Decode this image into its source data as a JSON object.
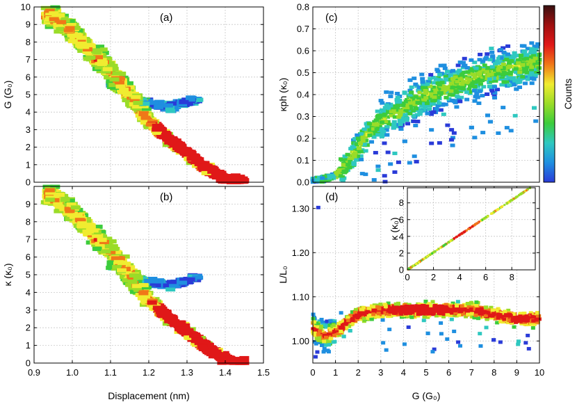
{
  "chart_data": [
    {
      "id": "a",
      "type": "heatmap",
      "panel_label": "(a)",
      "xlabel": "",
      "ylabel": "G (G₀)",
      "xlim": [
        0.9,
        1.5
      ],
      "ylim": [
        0,
        10
      ],
      "yticks": [
        0,
        1,
        2,
        3,
        4,
        5,
        6,
        7,
        8,
        9,
        10
      ],
      "trace": {
        "x": [
          0.95,
          1.0,
          1.05,
          1.1,
          1.15,
          1.2,
          1.25,
          1.3,
          1.35,
          1.4,
          1.44
        ],
        "y": [
          9.5,
          8.6,
          7.4,
          6.4,
          5.0,
          3.5,
          2.5,
          1.7,
          0.8,
          0.2,
          0.0
        ]
      },
      "branch": {
        "x": [
          1.1,
          1.18,
          1.26,
          1.33
        ],
        "y": [
          5.6,
          4.6,
          4.3,
          4.8
        ]
      }
    },
    {
      "id": "b",
      "type": "heatmap",
      "panel_label": "(b)",
      "xlabel": "Displacement (nm)",
      "ylabel": "κ (κ₀)",
      "xlim": [
        0.9,
        1.5
      ],
      "ylim": [
        0,
        10
      ],
      "xticks": [
        0.9,
        1.0,
        1.1,
        1.2,
        1.3,
        1.4,
        1.5
      ],
      "xtick_labels": [
        "0.9",
        "1.0",
        "1.1",
        "1.2",
        "1.3",
        "1.4",
        "1.5"
      ],
      "yticks": [
        0,
        1,
        2,
        3,
        4,
        5,
        6,
        7,
        8,
        9
      ],
      "trace": {
        "x": [
          0.95,
          1.0,
          1.05,
          1.1,
          1.15,
          1.2,
          1.25,
          1.3,
          1.35,
          1.4,
          1.44
        ],
        "y": [
          9.5,
          8.6,
          7.4,
          6.4,
          5.0,
          3.6,
          2.6,
          1.8,
          0.9,
          0.2,
          0.0
        ]
      },
      "branch": {
        "x": [
          1.1,
          1.18,
          1.26,
          1.33
        ],
        "y": [
          5.6,
          4.7,
          4.4,
          4.9
        ]
      }
    },
    {
      "id": "c",
      "type": "heatmap",
      "panel_label": "(c)",
      "xlabel": "",
      "ylabel": "κph (κ₀)",
      "xlim": [
        0,
        10
      ],
      "ylim": [
        0,
        0.8
      ],
      "yticks": [
        0,
        0.1,
        0.2,
        0.3,
        0.4,
        0.5,
        0.6,
        0.7,
        0.8
      ],
      "ytick_labels": [
        "0.0",
        "0.1",
        "0.2",
        "0.3",
        "0.4",
        "0.5",
        "0.6",
        "0.7",
        "0.8"
      ],
      "trend": {
        "x": [
          0,
          0.5,
          1,
          1.5,
          2,
          2.5,
          3,
          4,
          5,
          6,
          7,
          8,
          9,
          10
        ],
        "y": [
          0.01,
          0.015,
          0.03,
          0.08,
          0.16,
          0.23,
          0.28,
          0.34,
          0.4,
          0.44,
          0.47,
          0.5,
          0.53,
          0.55
        ]
      }
    },
    {
      "id": "d",
      "type": "heatmap",
      "panel_label": "(d)",
      "xlabel": "G (G₀)",
      "ylabel": "L/L₀",
      "xlim": [
        0,
        10
      ],
      "ylim": [
        0.95,
        1.35
      ],
      "xticks": [
        0,
        1,
        2,
        3,
        4,
        5,
        6,
        7,
        8,
        9,
        10
      ],
      "yticks": [
        1.0,
        1.1,
        1.2,
        1.3
      ],
      "ytick_labels": [
        "1.00",
        "1.10",
        "1.20",
        "1.30"
      ],
      "trend": {
        "x": [
          0,
          0.5,
          1,
          2,
          3,
          4,
          5,
          6,
          7,
          8,
          9,
          10
        ],
        "y": [
          1.03,
          1.01,
          1.02,
          1.06,
          1.07,
          1.07,
          1.07,
          1.07,
          1.07,
          1.06,
          1.05,
          1.05
        ]
      },
      "inset": {
        "type": "heatmap",
        "xlabel": "",
        "ylabel": "κ (κ₀)",
        "xlim": [
          0,
          9.8
        ],
        "ylim": [
          0,
          9.8
        ],
        "xticks": [
          0,
          2,
          4,
          6,
          8
        ],
        "yticks": [
          0,
          2,
          4,
          6,
          8
        ],
        "line": {
          "x": [
            0,
            9.8
          ],
          "y": [
            0,
            10.2
          ]
        }
      }
    }
  ],
  "colorbar": {
    "label": "Counts",
    "colors": [
      "#2a3bd8",
      "#1f8fe0",
      "#2fc8c0",
      "#3ccc3c",
      "#9adc28",
      "#f0ec30",
      "#f07818",
      "#e01818",
      "#a01010",
      "#381010"
    ]
  }
}
